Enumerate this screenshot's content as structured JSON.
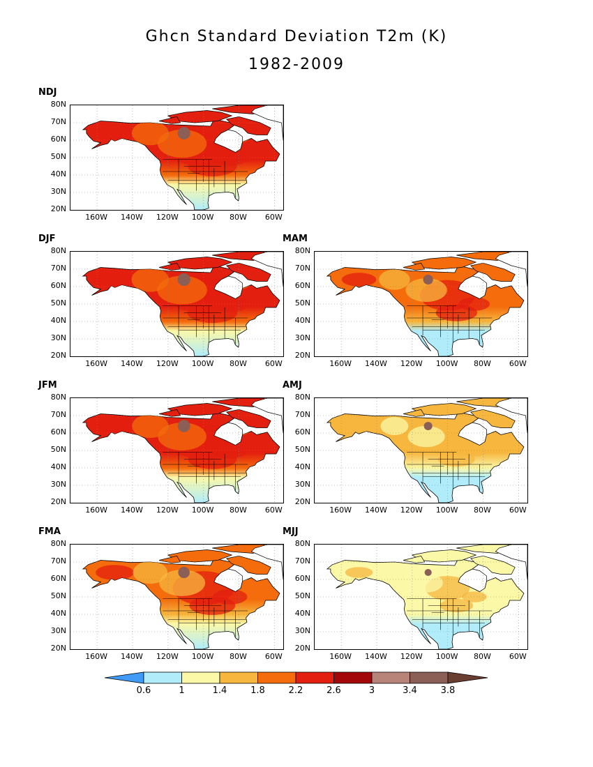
{
  "title": "Ghcn Standard Deviation T2m (K)",
  "subtitle": "1982-2009",
  "map": {
    "lat_ticks": [
      "80N",
      "70N",
      "60N",
      "50N",
      "40N",
      "30N",
      "20N"
    ],
    "lon_ticks": [
      "160W",
      "140W",
      "120W",
      "100W",
      "80W",
      "60W"
    ],
    "lat_range": [
      20,
      80
    ],
    "lon_range": [
      -175,
      -55
    ]
  },
  "panels": [
    {
      "id": "ndj",
      "label": "NDJ",
      "intensity": 0.92
    },
    {
      "id": "djf",
      "label": "DJF",
      "intensity": 0.95
    },
    {
      "id": "mam",
      "label": "MAM",
      "intensity": 0.62
    },
    {
      "id": "jfm",
      "label": "JFM",
      "intensity": 0.9
    },
    {
      "id": "amj",
      "label": "AMJ",
      "intensity": 0.45
    },
    {
      "id": "fma",
      "label": "FMA",
      "intensity": 0.8
    },
    {
      "id": "mjj",
      "label": "MJJ",
      "intensity": 0.3
    }
  ],
  "colorbar": {
    "levels": [
      "0.6",
      "1",
      "1.4",
      "1.8",
      "2.2",
      "2.6",
      "3",
      "3.4",
      "3.8"
    ],
    "colors": [
      "#3f9bf5",
      "#b0ecfa",
      "#fbf8a8",
      "#f7b73f",
      "#f46c0b",
      "#e31f0f",
      "#a4070a",
      "#b8847a",
      "#8b5e56",
      "#6b3e32"
    ]
  }
}
